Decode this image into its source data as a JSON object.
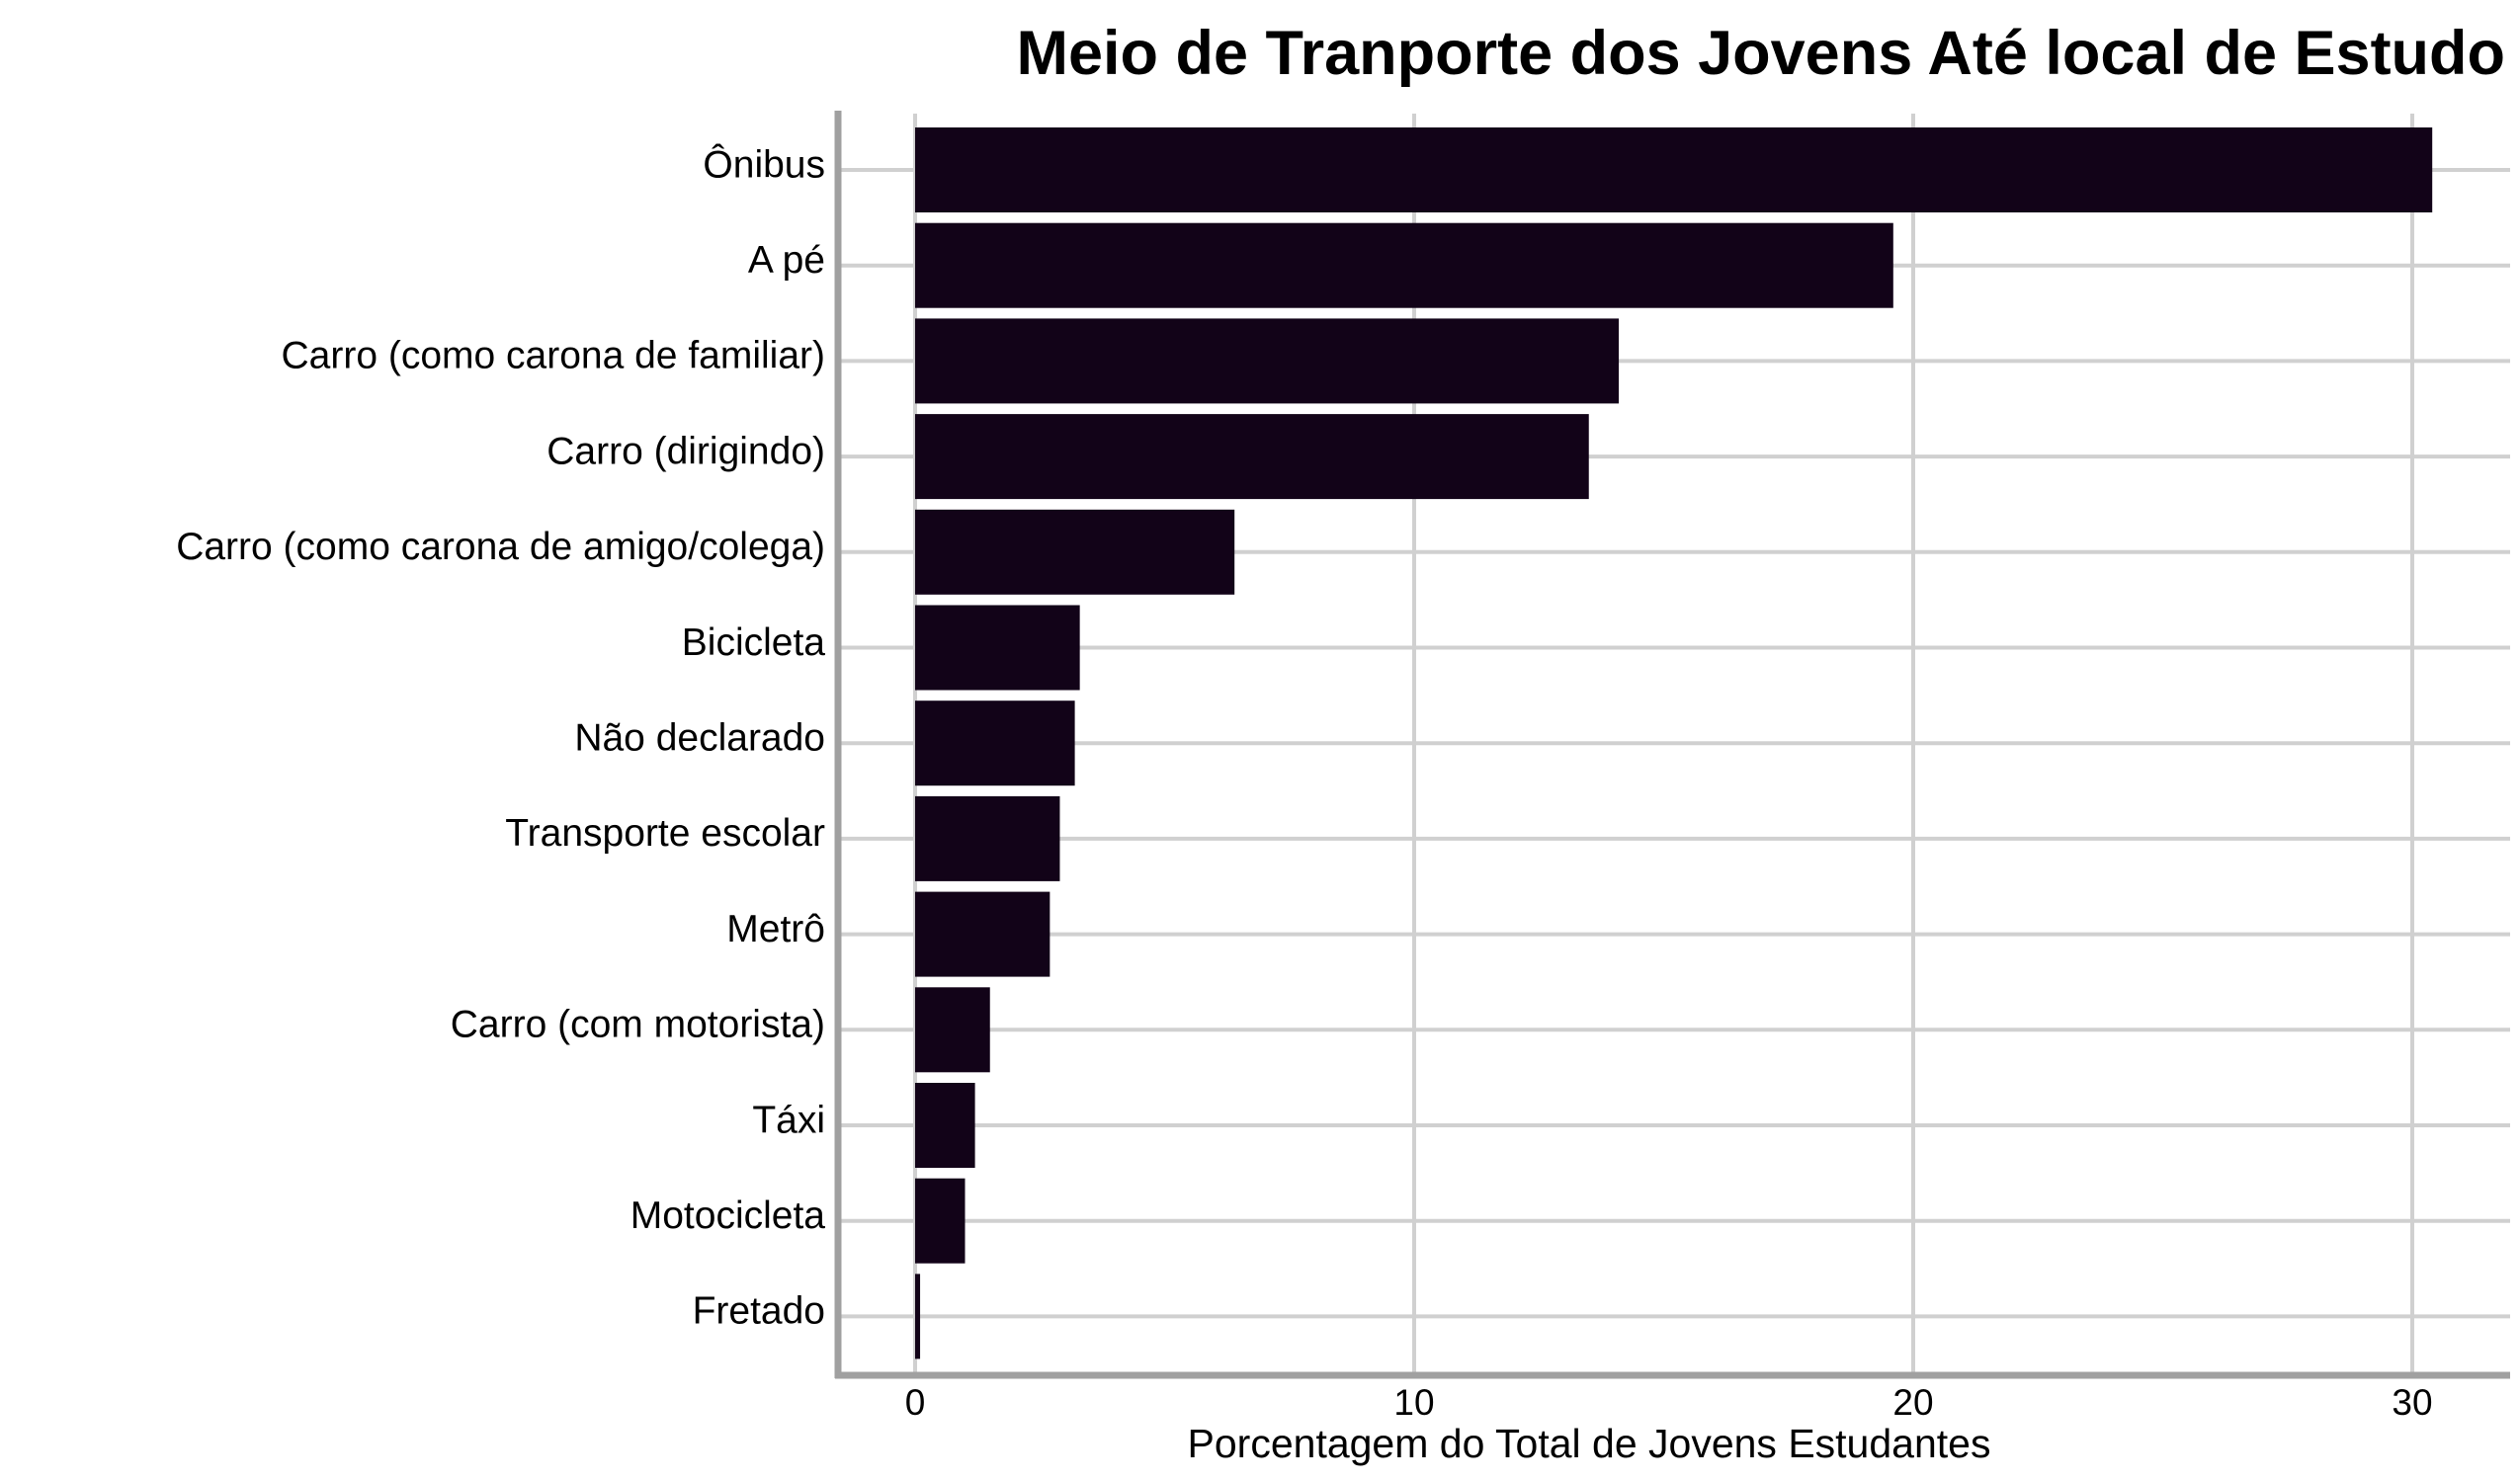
{
  "chart_data": {
    "type": "bar",
    "orientation": "horizontal",
    "title": "Meio de Tranporte dos Jovens Até local de Estudo",
    "xlabel": "Porcentagem do Total de Jovens Estudantes",
    "ylabel": "",
    "xlim": [
      -1.5,
      32
    ],
    "xticks": [
      0,
      10,
      20,
      30
    ],
    "grid": true,
    "bar_color": "#120318",
    "categories": [
      "Ônibus",
      "A pé",
      "Carro (como carona de familiar)",
      "Carro (dirigindo)",
      "Carro (como carona de amigo/colega)",
      "Bicicleta",
      "Não declarado",
      "Transporte escolar",
      "Metrô",
      "Carro (com motorista)",
      "Táxi",
      "Motocicleta",
      "Fretado"
    ],
    "values": [
      30.4,
      19.6,
      14.1,
      13.5,
      6.4,
      3.3,
      3.2,
      2.9,
      2.7,
      1.5,
      1.2,
      1.0,
      0.1
    ]
  }
}
